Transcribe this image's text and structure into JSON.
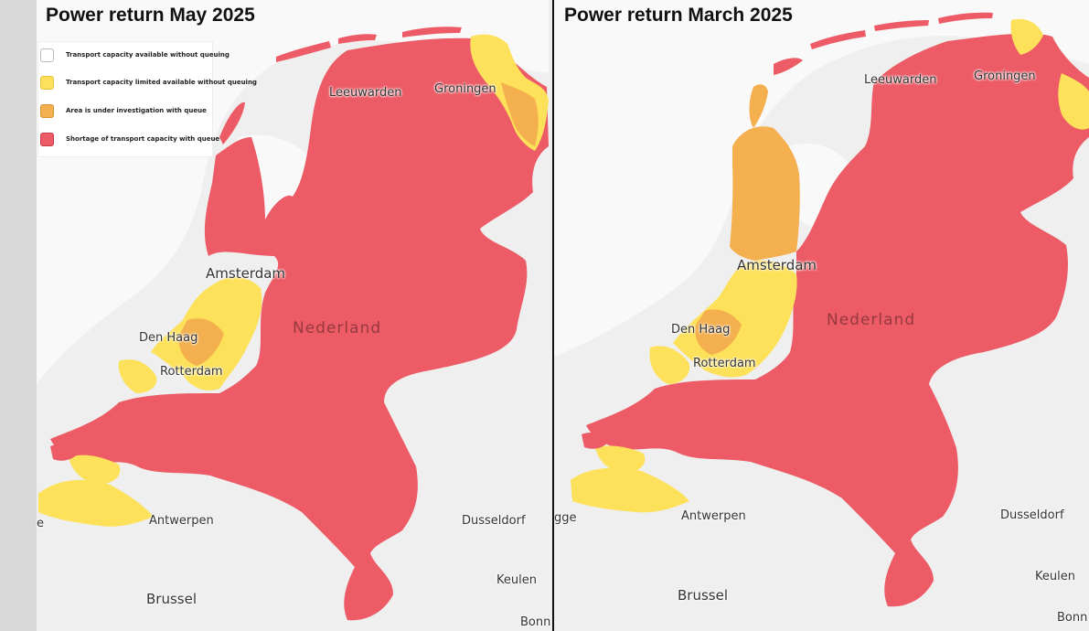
{
  "colors": {
    "shortage_red": "#ec5b66",
    "investigation_orange": "#f4b04f",
    "limited_yellow": "#fde15a",
    "available_white": "#ffffff",
    "land_gray": "#efefef",
    "water_white": "#fafafa"
  },
  "left_panel": {
    "title": "Power return May 2025",
    "legend": [
      {
        "label": "Transport capacity available without queuing",
        "color": "#ffffff"
      },
      {
        "label": "Transport capacity limited available without queuing",
        "color": "#fde15a"
      },
      {
        "label": "Area is under investigation with queue",
        "color": "#f4b04f"
      },
      {
        "label": "Shortage of transport capacity with queue",
        "color": "#ec5b66"
      }
    ],
    "cities": {
      "leeuwarden": "Leeuwarden",
      "groningen": "Groningen",
      "amsterdam": "Amsterdam",
      "den_haag": "Den Haag",
      "rotterdam": "Rotterdam",
      "antwerpen": "Antwerpen",
      "dusseldorf": "Dusseldorf",
      "keulen": "Keulen",
      "brussel": "Brussel",
      "bonn": "Bonn",
      "edge_fragment": "e"
    },
    "country": "Nederland"
  },
  "right_panel": {
    "title": "Power return March 2025",
    "cities": {
      "leeuwarden": "Leeuwarden",
      "groningen": "Groningen",
      "amsterdam": "Amsterdam",
      "den_haag": "Den Haag",
      "rotterdam": "Rotterdam",
      "antwerpen": "Antwerpen",
      "dusseldorf": "Dusseldorf",
      "keulen": "Keulen",
      "brussel": "Brussel",
      "bonn": "Bonn",
      "edge_fragment": "gge"
    },
    "country": "Nederland"
  }
}
